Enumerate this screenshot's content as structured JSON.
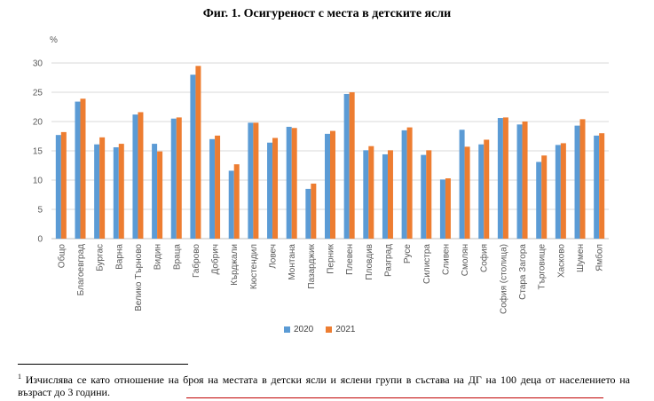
{
  "title": "Фиг. 1. Осигуреност с места в детските ясли",
  "chart_data": {
    "type": "bar",
    "title": "Фиг. 1. Осигуреност с места в детските ясли",
    "ylabel": "%",
    "xlabel": "",
    "ylim": [
      0,
      30
    ],
    "yticks": [
      0,
      5,
      10,
      15,
      20,
      25,
      30
    ],
    "grid": true,
    "legend_position": "bottom",
    "categories": [
      "Общо",
      "Благоевград",
      "Бургас",
      "Варна",
      "Велико Търново",
      "Видин",
      "Враца",
      "Габрово",
      "Добрич",
      "Кърджали",
      "Кюстендил",
      "Ловеч",
      "Монтана",
      "Пазарджик",
      "Перник",
      "Плевен",
      "Пловдив",
      "Разград",
      "Русе",
      "Силистра",
      "Сливен",
      "Смолян",
      "София",
      "София (столица)",
      "Стара Загора",
      "Търговище",
      "Хасково",
      "Шумен",
      "Ямбол"
    ],
    "series": [
      {
        "name": "2020",
        "color": "#5B9BD5",
        "values": [
          17.7,
          23.4,
          16.1,
          15.6,
          21.2,
          16.2,
          20.5,
          28.0,
          17.0,
          11.6,
          19.8,
          16.4,
          19.1,
          8.5,
          17.9,
          24.7,
          15.1,
          14.4,
          18.5,
          14.3,
          10.1,
          18.6,
          16.1,
          20.6,
          19.5,
          13.1,
          16.0,
          19.3,
          17.6
        ]
      },
      {
        "name": "2021",
        "color": "#ED7D31",
        "values": [
          18.2,
          23.9,
          17.3,
          16.2,
          21.6,
          14.9,
          20.7,
          29.5,
          17.6,
          12.7,
          19.8,
          17.2,
          18.9,
          9.4,
          18.4,
          25.0,
          15.8,
          15.1,
          19.0,
          15.1,
          10.3,
          15.7,
          16.9,
          20.7,
          20.0,
          14.2,
          16.3,
          20.4,
          18.0
        ]
      }
    ]
  },
  "footnote": {
    "marker": "1",
    "text": "Изчислява се като отношение на броя на местата в детски ясли и яслени групи в състава на ДГ на 100 деца от населението на възраст до 3 години."
  }
}
